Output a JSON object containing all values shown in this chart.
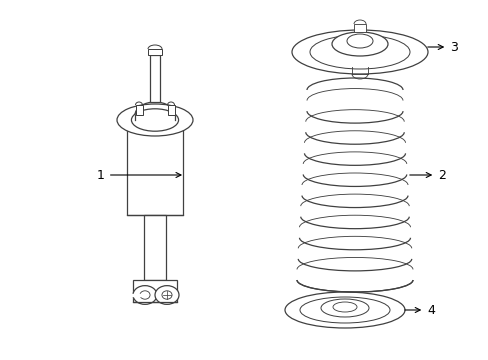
{
  "background_color": "#ffffff",
  "line_color": "#404040",
  "label_color": "#000000",
  "fig_width": 4.89,
  "fig_height": 3.6,
  "dpi": 100
}
